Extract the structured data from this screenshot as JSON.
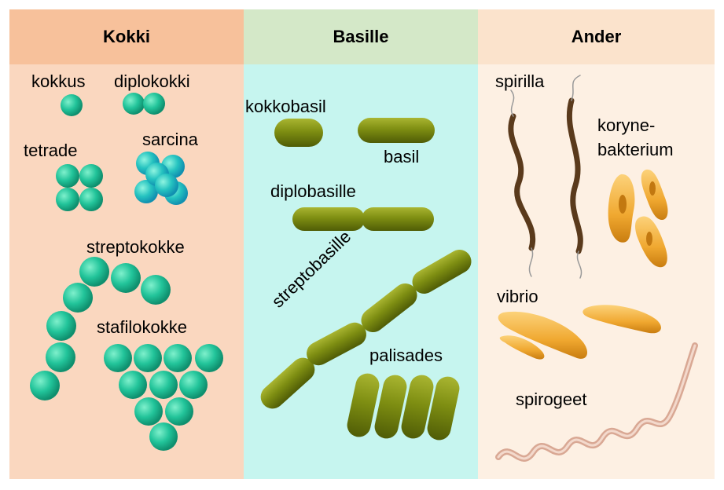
{
  "colors": {
    "kokki_bg": "#fad7bf",
    "kokki_header": "#f7c19b",
    "basille_bg": "#c6f5ef",
    "basille_header": "#d4e8c8",
    "ander_bg": "#fdf0e3",
    "ander_header": "#fbe3cc",
    "coccus": "#22c49a",
    "bacillus": "#7a8a10",
    "spirillum": "#5a3a1c",
    "vibrio": "#f0a830",
    "spirochete": "#d9a894"
  },
  "columns": {
    "kokki": {
      "title": "Kokki"
    },
    "basille": {
      "title": "Basille"
    },
    "ander": {
      "title": "Ander"
    }
  },
  "labels": {
    "kokkus": "kokkus",
    "diplokokki": "diplokokki",
    "tetrade": "tetrade",
    "sarcina": "sarcina",
    "streptokokke": "streptokokke",
    "stafilokokke": "stafilokokke",
    "kokkobasil": "kokkobasil",
    "basil": "basil",
    "diplobasille": "diplobasille",
    "streptobasille": "streptobasille",
    "palisades": "palisades",
    "spirilla": "spirilla",
    "koryne_line1": "koryne-",
    "koryne_line2": "bakterium",
    "vibrio": "vibrio",
    "spirogeet": "spirogeet"
  }
}
